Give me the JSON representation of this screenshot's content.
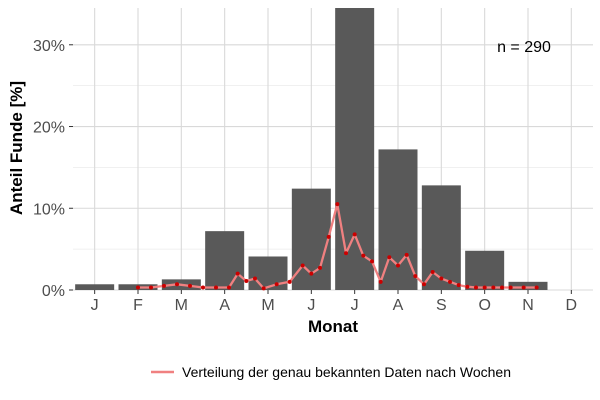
{
  "chart_data": {
    "type": "bar",
    "xlabel": "Monat",
    "ylabel": "Anteil Funde [%]",
    "categories": [
      "J",
      "F",
      "M",
      "A",
      "M",
      "J",
      "J",
      "A",
      "S",
      "O",
      "N",
      "D"
    ],
    "values": [
      0.7,
      0.7,
      1.3,
      7.2,
      4.1,
      12.4,
      35.0,
      17.2,
      12.8,
      4.8,
      1.0,
      0
    ],
    "ylim": [
      0,
      34.5
    ],
    "yticks": [
      0,
      10,
      20,
      30
    ],
    "ytick_labels": [
      "0%",
      "10%",
      "20%",
      "30%"
    ],
    "annotation": "n = 290",
    "grid": true,
    "legend_position": "bottom",
    "bar_color": "#595959",
    "line_series": {
      "name": "Verteilung der genau bekannten Daten nach Wochen",
      "color": "#f08080",
      "point_color": "#cc0000",
      "x": [
        2.0,
        2.3,
        2.6,
        2.9,
        3.2,
        3.5,
        3.8,
        4.1,
        4.3,
        4.5,
        4.7,
        4.9,
        5.2,
        5.5,
        5.8,
        6.0,
        6.2,
        6.4,
        6.6,
        6.8,
        7.0,
        7.2,
        7.4,
        7.6,
        7.8,
        8.0,
        8.2,
        8.4,
        8.6,
        8.8,
        9.0,
        9.2,
        9.4,
        9.6,
        9.8,
        10.0,
        10.2,
        10.4,
        10.6,
        10.9,
        11.2
      ],
      "y": [
        0.3,
        0.3,
        0.5,
        0.7,
        0.5,
        0.3,
        0.3,
        0.3,
        2.0,
        1.1,
        1.4,
        0.2,
        0.7,
        1.0,
        3.0,
        2.0,
        2.7,
        6.5,
        10.5,
        4.5,
        6.8,
        4.2,
        3.5,
        1.0,
        4.0,
        3.0,
        4.3,
        1.7,
        0.7,
        2.2,
        1.4,
        1.0,
        0.6,
        0.4,
        0.3,
        0.3,
        0.3,
        0.3,
        0.3,
        0.3,
        0.3
      ]
    }
  }
}
